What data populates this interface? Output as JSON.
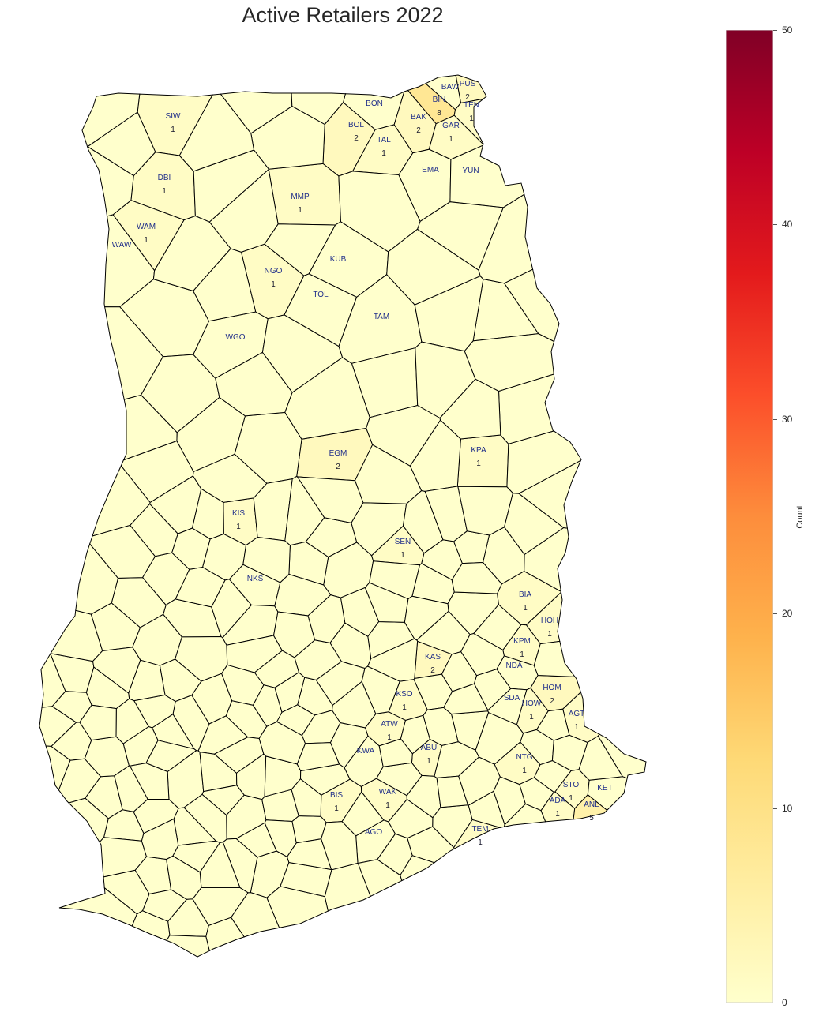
{
  "title": "Active Retailers 2022",
  "colorbar": {
    "label": "Count",
    "min": 0,
    "max": 50,
    "ticks": [
      "0",
      "10",
      "20",
      "30",
      "40",
      "50"
    ],
    "colors": [
      "#ffffcc",
      "#ffeda0",
      "#fed976",
      "#feb24c",
      "#fd8d3c",
      "#fc4e2a",
      "#e31a1c",
      "#bd0026",
      "#800026"
    ]
  },
  "map": {
    "fill_default": "#ffffcc",
    "stroke": "#000000",
    "districts": [
      {
        "code": "PUS",
        "count": "2"
      },
      {
        "code": "BAW",
        "count": ""
      },
      {
        "code": "BIN",
        "count": "8"
      },
      {
        "code": "TEN",
        "count": "1"
      },
      {
        "code": "BON",
        "count": ""
      },
      {
        "code": "SIW",
        "count": "1"
      },
      {
        "code": "BAK",
        "count": "2"
      },
      {
        "code": "GAR",
        "count": "1"
      },
      {
        "code": "BOL",
        "count": "2"
      },
      {
        "code": "TAL",
        "count": "1"
      },
      {
        "code": "EMA",
        "count": ""
      },
      {
        "code": "YUN",
        "count": ""
      },
      {
        "code": "DBI",
        "count": "1"
      },
      {
        "code": "MMP",
        "count": "1"
      },
      {
        "code": "WAM",
        "count": "1"
      },
      {
        "code": "WAW",
        "count": ""
      },
      {
        "code": "KUB",
        "count": ""
      },
      {
        "code": "NGO",
        "count": "1"
      },
      {
        "code": "TOL",
        "count": ""
      },
      {
        "code": "TAM",
        "count": ""
      },
      {
        "code": "WGO",
        "count": ""
      },
      {
        "code": "EGM",
        "count": "2"
      },
      {
        "code": "KPA",
        "count": "1"
      },
      {
        "code": "KIS",
        "count": "1"
      },
      {
        "code": "SEN",
        "count": "1"
      },
      {
        "code": "NKS",
        "count": ""
      },
      {
        "code": "BIA",
        "count": "1"
      },
      {
        "code": "HOH",
        "count": "1"
      },
      {
        "code": "KPM",
        "count": "1"
      },
      {
        "code": "KAS",
        "count": "2"
      },
      {
        "code": "NDA",
        "count": ""
      },
      {
        "code": "HOM",
        "count": "2"
      },
      {
        "code": "KSO",
        "count": "1"
      },
      {
        "code": "SDA",
        "count": ""
      },
      {
        "code": "HOW",
        "count": "1"
      },
      {
        "code": "AGT",
        "count": "1"
      },
      {
        "code": "ATW",
        "count": "1"
      },
      {
        "code": "ABU",
        "count": "1"
      },
      {
        "code": "KWA",
        "count": ""
      },
      {
        "code": "NTG",
        "count": "1"
      },
      {
        "code": "STO",
        "count": "1"
      },
      {
        "code": "KET",
        "count": ""
      },
      {
        "code": "BIS",
        "count": "1"
      },
      {
        "code": "WAK",
        "count": "1"
      },
      {
        "code": "ADA",
        "count": "1"
      },
      {
        "code": "ANL",
        "count": "5"
      },
      {
        "code": "TEM",
        "count": "1"
      },
      {
        "code": "AGO",
        "count": ""
      }
    ]
  }
}
